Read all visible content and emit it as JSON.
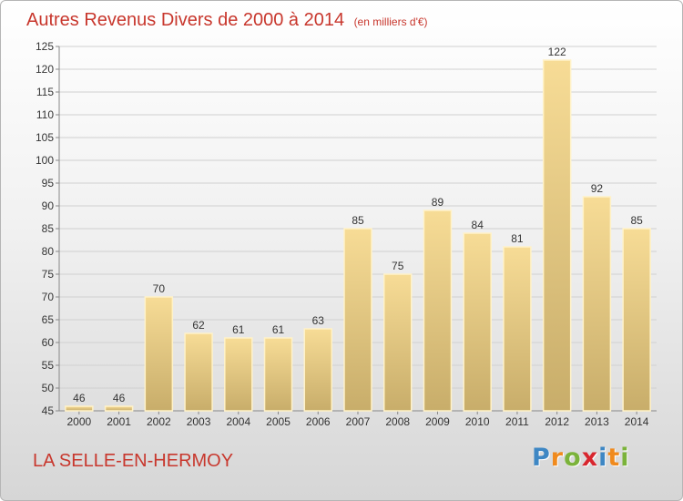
{
  "chart_data": {
    "type": "bar",
    "title": "Autres Revenus Divers de 2000 à 2014",
    "unit": "(en milliers d'€)",
    "categories": [
      "2000",
      "2001",
      "2002",
      "2003",
      "2004",
      "2005",
      "2006",
      "2007",
      "2008",
      "2009",
      "2010",
      "2011",
      "2012",
      "2013",
      "2014"
    ],
    "values": [
      46,
      46,
      70,
      62,
      61,
      61,
      63,
      85,
      75,
      89,
      84,
      81,
      122,
      92,
      85
    ],
    "ylim": [
      45,
      125
    ],
    "yticks": [
      45,
      50,
      55,
      60,
      65,
      70,
      75,
      80,
      85,
      90,
      95,
      100,
      105,
      110,
      115,
      120,
      125
    ],
    "grid": true,
    "bar_color_top": "#f7dc96",
    "bar_color_bottom": "#c8ad6a"
  },
  "footer": {
    "location": "LA SELLE-EN-HERMOY",
    "brand_letters": [
      "P",
      "r",
      "o",
      "x",
      "i",
      "t",
      "i"
    ],
    "brand_colors": [
      "#3e87c4",
      "#f08a1d",
      "#7bb33a",
      "#d8262e",
      "#3e87c4",
      "#f08a1d",
      "#7bb33a"
    ]
  }
}
